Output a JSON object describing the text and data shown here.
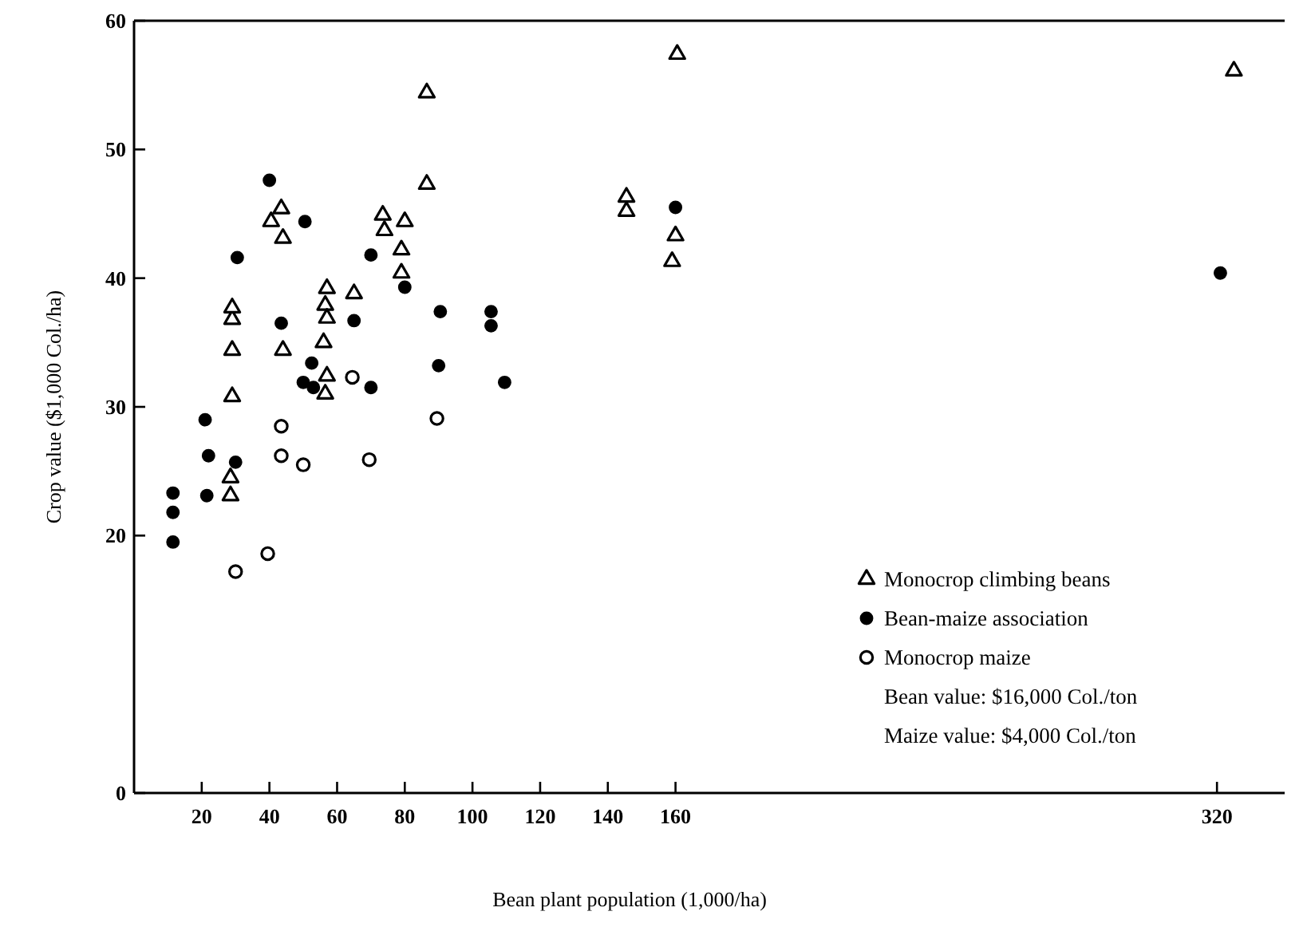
{
  "chart_data": {
    "type": "scatter",
    "xlabel": "Bean plant population (1,000/ha)",
    "ylabel": "Crop value ($1,000 Col./ha)",
    "xlim": [
      0,
      340
    ],
    "xticks": [
      20,
      40,
      60,
      80,
      100,
      120,
      140,
      160,
      320
    ],
    "ylim": [
      0,
      60
    ],
    "yticks": [
      0,
      20,
      30,
      40,
      50,
      60
    ],
    "legend": "bottom right",
    "annotations": [
      "Bean value: $16,000 Col./ton",
      "Maize value: $4,000 Col./ton"
    ],
    "series": [
      {
        "name": "Monocrop climbing beans",
        "color": "#000000",
        "marker": "triangle",
        "x": [
          28.5,
          28.5,
          29,
          29,
          29,
          29,
          40.5,
          43.5,
          44,
          44,
          56,
          56.5,
          56.5,
          57,
          57,
          57,
          65,
          73.5,
          74,
          79,
          79,
          80,
          86.5,
          86.5,
          145.5,
          145.5,
          159,
          160,
          160.5,
          325
        ],
        "values": [
          23.1,
          24.5,
          30.8,
          34.4,
          36.8,
          37.7,
          44.4,
          45.4,
          43.1,
          34.4,
          35.0,
          31.0,
          37.9,
          36.9,
          39.2,
          32.4,
          38.8,
          44.9,
          43.7,
          40.4,
          42.2,
          44.4,
          47.3,
          54.4,
          46.3,
          45.2,
          41.3,
          43.3,
          57.4,
          56.1
        ]
      },
      {
        "name": "Bean-maize association",
        "color": "#000000",
        "marker": "circle",
        "x": [
          11.5,
          11.5,
          11.5,
          21,
          22,
          21.5,
          30,
          30.5,
          40,
          43.5,
          50,
          50.5,
          52.5,
          53,
          65,
          70,
          70,
          80,
          90,
          90.5,
          105.5,
          105.5,
          109.5,
          160,
          321
        ],
        "values": [
          23.3,
          21.8,
          19.5,
          29.0,
          26.2,
          23.1,
          25.7,
          41.6,
          47.6,
          36.5,
          31.9,
          44.4,
          33.4,
          31.5,
          36.7,
          31.5,
          41.8,
          39.3,
          33.2,
          37.4,
          37.4,
          36.3,
          31.9,
          45.5,
          40.4
        ]
      },
      {
        "name": "Monocrop maize",
        "color": "#000000",
        "marker": "circle",
        "x": [
          30,
          39.5,
          43.5,
          43.5,
          50,
          64.5,
          69.5,
          89.5
        ],
        "values": [
          17.2,
          18.6,
          28.5,
          26.2,
          25.5,
          32.3,
          25.9,
          29.1
        ]
      }
    ]
  }
}
